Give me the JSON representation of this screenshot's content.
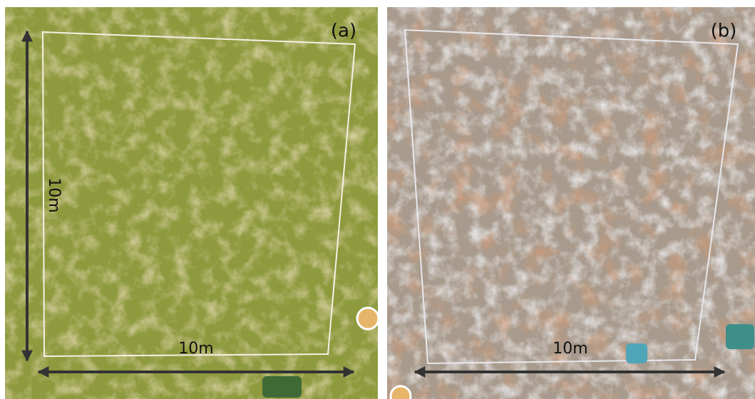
{
  "panels": [
    {
      "label": "(a)",
      "vertical_label": "10m",
      "horizontal_label": "10m"
    },
    {
      "label": "(b)",
      "horizontal_label": "10m"
    }
  ]
}
